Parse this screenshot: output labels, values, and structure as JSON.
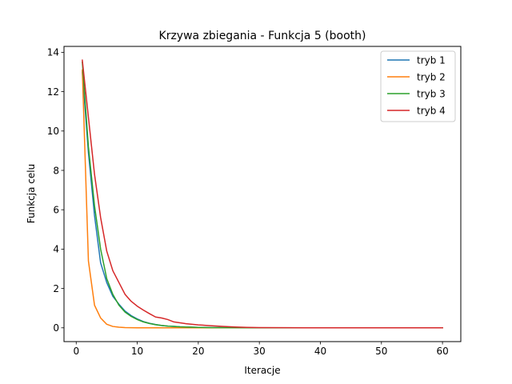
{
  "chart_data": {
    "type": "line",
    "title": "Krzywa zbiegania - Funkcja 5 (booth)",
    "xlabel": "Iteracje",
    "ylabel": "Funkcja celu",
    "xlim": [
      -2,
      63
    ],
    "ylim": [
      -0.7,
      14.3
    ],
    "xticks": [
      0,
      10,
      20,
      30,
      40,
      50,
      60
    ],
    "yticks": [
      0,
      2,
      4,
      6,
      8,
      10,
      12,
      14
    ],
    "legend_position": "top-right",
    "grid": false,
    "series": [
      {
        "name": "tryb 1",
        "color": "#1f77b4",
        "x": [
          1,
          2,
          3,
          4,
          5,
          6,
          7,
          8,
          9,
          10,
          11,
          12,
          13,
          14,
          15,
          16,
          17,
          18,
          20,
          22,
          25,
          30,
          40,
          50,
          60
        ],
        "y": [
          13.0,
          8.9,
          5.7,
          3.3,
          2.3,
          1.6,
          1.2,
          0.85,
          0.62,
          0.45,
          0.32,
          0.23,
          0.17,
          0.12,
          0.09,
          0.07,
          0.05,
          0.04,
          0.02,
          0.01,
          0.005,
          0.0,
          0.0,
          0.0,
          0.0
        ]
      },
      {
        "name": "tryb 2",
        "color": "#ff7f0e",
        "x": [
          1,
          2,
          3,
          4,
          5,
          6,
          7,
          8,
          10,
          15,
          20,
          30,
          40,
          50,
          60
        ],
        "y": [
          13.1,
          3.4,
          1.15,
          0.5,
          0.18,
          0.07,
          0.03,
          0.01,
          0.0,
          0.0,
          0.0,
          0.0,
          0.0,
          0.0,
          0.0
        ]
      },
      {
        "name": "tryb 3",
        "color": "#2ca02c",
        "x": [
          1,
          2,
          3,
          4,
          5,
          6,
          7,
          8,
          9,
          10,
          11,
          12,
          13,
          14,
          15,
          16,
          17,
          18,
          20,
          22,
          25,
          30,
          40,
          50,
          60
        ],
        "y": [
          13.5,
          9.2,
          6.2,
          4.0,
          2.5,
          1.7,
          1.15,
          0.8,
          0.58,
          0.42,
          0.3,
          0.22,
          0.16,
          0.12,
          0.09,
          0.07,
          0.05,
          0.04,
          0.02,
          0.01,
          0.005,
          0.0,
          0.0,
          0.0,
          0.0
        ]
      },
      {
        "name": "tryb 4",
        "color": "#d62728",
        "x": [
          1,
          2,
          3,
          4,
          5,
          6,
          7,
          8,
          9,
          10,
          11,
          12,
          13,
          14,
          15,
          16,
          18,
          20,
          22,
          24,
          26,
          28,
          30,
          35,
          40,
          50,
          60
        ],
        "y": [
          13.6,
          10.7,
          7.8,
          5.6,
          3.9,
          2.9,
          2.3,
          1.7,
          1.35,
          1.1,
          0.9,
          0.72,
          0.55,
          0.5,
          0.42,
          0.3,
          0.21,
          0.15,
          0.11,
          0.07,
          0.04,
          0.02,
          0.01,
          0.005,
          0.0,
          0.0,
          0.0
        ]
      }
    ]
  }
}
